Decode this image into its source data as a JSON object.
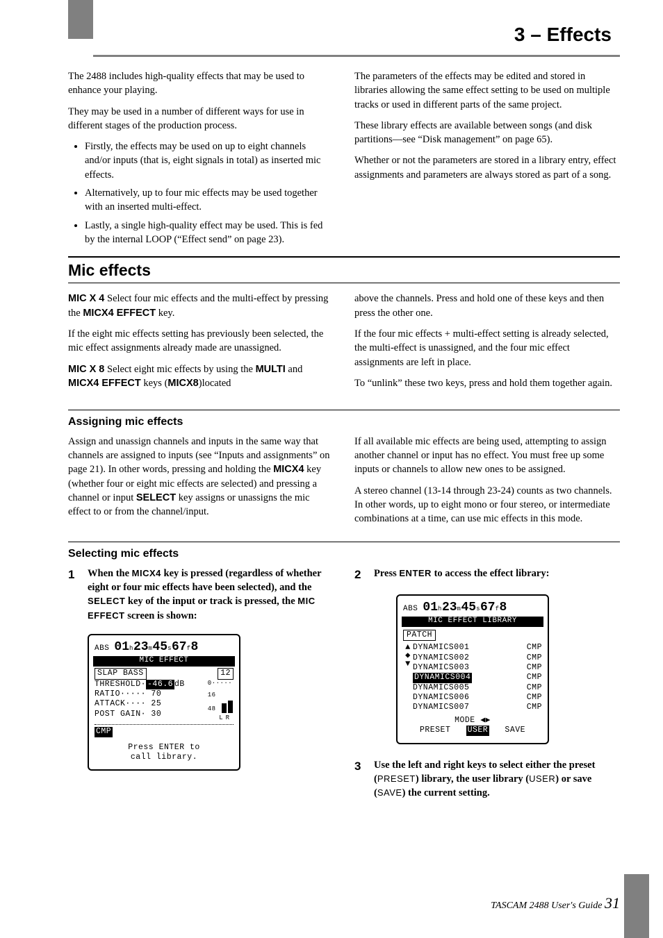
{
  "header": {
    "title": "3 – Effects"
  },
  "intro_left": {
    "p1": "The 2488 includes high-quality effects that may be used to enhance your playing.",
    "p2": "They may be used in a number of different ways for use in different stages of the production process.",
    "li1": "Firstly, the effects may be used on up to eight channels and/or inputs (that is, eight signals in total) as inserted mic effects.",
    "li2": "Alternatively, up to four mic effects may be used together with an inserted multi-effect.",
    "li3": "Lastly, a single high-quality effect may be used. This is fed by the internal LOOP (“Effect send” on page 23)."
  },
  "intro_right": {
    "p1": "The parameters of the effects may be edited and stored in libraries allowing the same effect setting to be used on multiple tracks or used in different parts of the same project.",
    "p2": "These library effects are available between songs (and disk partitions—see “Disk management” on page 65).",
    "p3": "Whether or not the parameters are stored in a library entry, effect assignments and parameters are always stored as part of a song."
  },
  "sec_mic": {
    "title": "Mic effects",
    "left": {
      "mx4_label": "MIC X 4",
      "mx4_text": " Select four mic effects and the multi-effect by pressing the ",
      "mx4_key": "MICX4 EFFECT",
      "mx4_tail": " key.",
      "p2": "If the eight mic effects setting has previously been selected, the mic effect assignments already made are unassigned.",
      "mx8_label": "MIC X 8",
      "mx8_text": " Select eight mic effects by using the ",
      "mx8_k1": "MULTI",
      "mx8_mid": " and ",
      "mx8_k2": "MICX4 EFFECT",
      "mx8_mid2": " keys (",
      "mx8_k3": "MICX8",
      "mx8_tail": ")located"
    },
    "right": {
      "p1": "above the channels. Press and hold one of these keys and then press the other one.",
      "p2": "If the four mic effects + multi-effect setting is already selected, the multi-effect is unassigned, and the four mic effect assignments are left in place.",
      "p3": "To “unlink” these two keys, press and hold them together again."
    }
  },
  "sec_assign": {
    "title": "Assigning mic effects",
    "left": {
      "p1a": "Assign and unassign channels and inputs in the same way that channels are assigned to inputs (see “Inputs and assignments” on page 21). In other words, pressing and holding the ",
      "k1": "MICX4",
      "p1b": " key (whether four or eight mic effects are selected) and pressing a channel or input ",
      "k2": "SELECT",
      "p1c": " key assigns or unassigns the mic effect to or from the channel/input."
    },
    "right": {
      "p1": "If all available mic effects are being used, attempting to assign another channel or input has no effect. You must free up some inputs or channels to allow new ones to be assigned.",
      "p2": "A stereo channel (13-14 through 23-24) counts as two channels. In other words, up to eight mono or four stereo, or intermediate combinations at a time, can use mic effects in this mode."
    }
  },
  "sec_select": {
    "title": "Selecting mic effects",
    "step1": {
      "num": "1",
      "a": "When the ",
      "k1": "MICX4",
      "b": " key is pressed (regardless of whether eight or four mic effects have been selected), and the ",
      "k2": "SELECT",
      "c": " key of the input or track is pressed, the ",
      "k3": "MIC EFFECT",
      "d": " screen is shown:"
    },
    "step2": {
      "num": "2",
      "a": "Press ",
      "k1": "ENTER",
      "b": " to access the effect library:"
    },
    "step3": {
      "num": "3",
      "a": "Use the left and right keys to select either the preset (",
      "k1": "PRESET",
      "b": ") library, the user library (",
      "k2": "USER",
      "c": ") or save (",
      "k3": "SAVE",
      "d": ") the current setting."
    }
  },
  "lcd1": {
    "abs_label": "ABS",
    "t": {
      "h1": "01",
      "m": "23",
      "s": "45",
      "f": "67",
      "sf": "8",
      "uh": "h",
      "um": "m",
      "us": "s",
      "uf": "f"
    },
    "title": "MIC EFFECT",
    "preset": "SLAP BASS",
    "ch": "12",
    "rows": [
      {
        "label": "THRESHOLD",
        "val": "-46.6",
        "unit": "dB"
      },
      {
        "label": "RATIO",
        "val": "70",
        "unit": ""
      },
      {
        "label": "ATTACK",
        "val": "25",
        "unit": ""
      },
      {
        "label": "POST GAIN",
        "val": "30",
        "unit": ""
      }
    ],
    "meter": {
      "ticks": [
        "0",
        "16",
        "48"
      ],
      "lr": [
        "L",
        "R"
      ],
      "heights": [
        14,
        18
      ]
    },
    "tag": "CMP",
    "hint1": "Press ENTER to",
    "hint2": "call library."
  },
  "lcd2": {
    "abs_label": "ABS",
    "t": {
      "h1": "01",
      "m": "23",
      "s": "45",
      "f": "67",
      "sf": "8",
      "uh": "h",
      "um": "m",
      "us": "s",
      "uf": "f"
    },
    "title": "MIC EFFECT LIBRARY",
    "subtitle": "PATCH",
    "items": [
      {
        "name": "DYNAMICS001",
        "tag": "CMP",
        "sel": false
      },
      {
        "name": "DYNAMICS002",
        "tag": "CMP",
        "sel": false
      },
      {
        "name": "DYNAMICS003",
        "tag": "CMP",
        "sel": false
      },
      {
        "name": "DYNAMICS004",
        "tag": "CMP",
        "sel": true
      },
      {
        "name": "DYNAMICS005",
        "tag": "CMP",
        "sel": false
      },
      {
        "name": "DYNAMICS006",
        "tag": "CMP",
        "sel": false
      },
      {
        "name": "DYNAMICS007",
        "tag": "CMP",
        "sel": false
      }
    ],
    "mode_label": "MODE ◀▶",
    "modes": {
      "preset": "PRESET",
      "user": "USER",
      "save": "SAVE"
    }
  },
  "footer": {
    "book": "TASCAM 2488 User's Guide",
    "page": "31"
  }
}
